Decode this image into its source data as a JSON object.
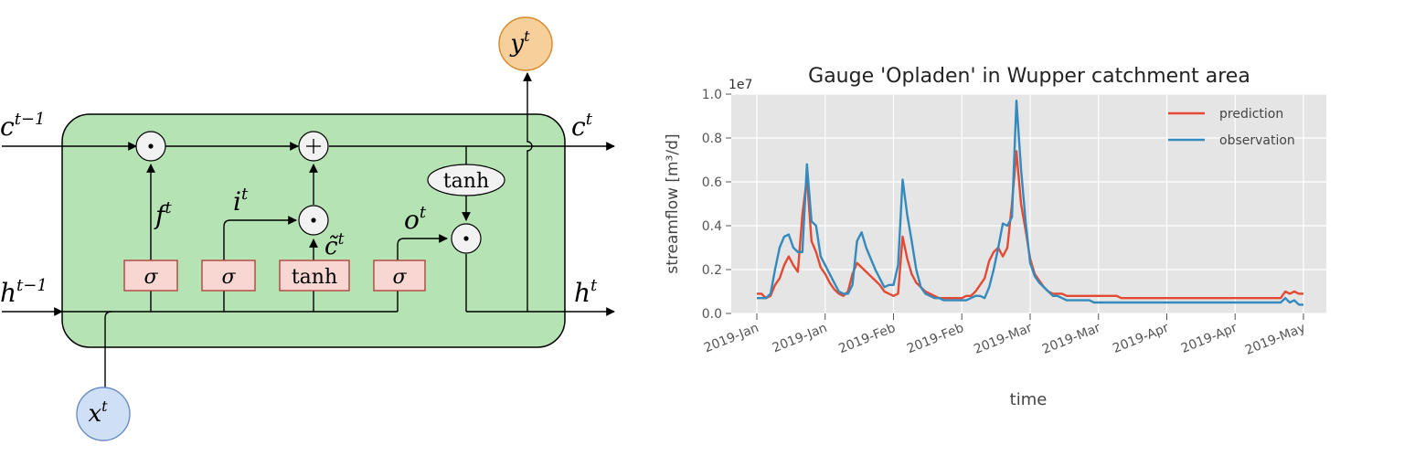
{
  "diagram": {
    "inputs": {
      "c_prev": {
        "base": "c",
        "sup": "t−1"
      },
      "h_prev": {
        "base": "h",
        "sup": "t−1"
      },
      "x": {
        "base": "x",
        "sup": "t"
      }
    },
    "outputs": {
      "c": {
        "base": "c",
        "sup": "t"
      },
      "h": {
        "base": "h",
        "sup": "t"
      },
      "y": {
        "base": "y",
        "sup": "t"
      }
    },
    "gate_labels": {
      "f": {
        "base": "f",
        "sup": "t"
      },
      "i": {
        "base": "i",
        "sup": "t"
      },
      "c_tilde": {
        "base": "c̃",
        "sup": "t"
      },
      "o": {
        "base": "o",
        "sup": "t"
      }
    },
    "boxes": [
      "σ",
      "σ",
      "tanh",
      "σ"
    ],
    "tanh_node": "tanh",
    "ops": {
      "mul": "⊙",
      "add": "+"
    },
    "colors": {
      "cell_fill": "#b5e3b4",
      "gate_fill": "#f8d7d2",
      "gate_stroke": "#b5413d",
      "y_fill": "#f6cf9a",
      "y_stroke": "#d48a2e",
      "x_fill": "#cfe0f6",
      "x_stroke": "#6b8dc4",
      "op_fill": "#f2f2f2"
    }
  },
  "chart_data": {
    "type": "line",
    "title": "Gauge 'Opladen' in Wupper catchment area",
    "xlabel": "time",
    "ylabel": "streamflow [m³/d]",
    "offset_label": "1e7",
    "ylim": [
      0,
      1.0
    ],
    "yticks": [
      "0.0",
      "0.2",
      "0.4",
      "0.6",
      "0.8",
      "1.0"
    ],
    "xticks": [
      "2019-Jan",
      "2019-Jan",
      "2019-Feb",
      "2019-Feb",
      "2019-Mar",
      "2019-Mar",
      "2019-Apr",
      "2019-Apr",
      "2019-May"
    ],
    "grid": true,
    "legend": "top-right",
    "x": [
      0,
      1,
      2,
      3,
      4,
      5,
      6,
      7,
      8,
      9,
      10,
      11,
      12,
      13,
      14,
      15,
      16,
      17,
      18,
      19,
      20,
      21,
      22,
      23,
      24,
      25,
      26,
      27,
      28,
      29,
      30,
      31,
      32,
      33,
      34,
      35,
      36,
      37,
      38,
      39,
      40,
      41,
      42,
      43,
      44,
      45,
      46,
      47,
      48,
      49,
      50,
      51,
      52,
      53,
      54,
      55,
      56,
      57,
      58,
      59,
      60,
      61,
      62,
      63,
      64,
      65,
      66,
      67,
      68,
      69,
      70,
      71,
      72,
      73,
      74,
      75,
      76,
      77,
      78,
      79,
      80,
      81,
      82,
      83,
      84,
      85,
      86,
      87,
      88,
      89,
      90,
      91,
      92,
      93,
      94,
      95,
      96,
      97,
      98,
      99,
      100,
      101,
      102,
      103,
      104,
      105,
      106,
      107,
      108,
      109,
      110,
      111,
      112,
      113,
      114,
      115,
      116,
      117,
      118,
      119,
      120
    ],
    "series": [
      {
        "name": "prediction",
        "color": "#e24a33",
        "values": [
          0.09,
          0.09,
          0.07,
          0.08,
          0.13,
          0.16,
          0.22,
          0.26,
          0.22,
          0.19,
          0.45,
          0.62,
          0.33,
          0.28,
          0.21,
          0.18,
          0.14,
          0.11,
          0.09,
          0.08,
          0.1,
          0.18,
          0.23,
          0.21,
          0.19,
          0.17,
          0.15,
          0.13,
          0.1,
          0.09,
          0.08,
          0.09,
          0.35,
          0.25,
          0.18,
          0.14,
          0.12,
          0.1,
          0.09,
          0.08,
          0.07,
          0.07,
          0.07,
          0.07,
          0.07,
          0.07,
          0.08,
          0.08,
          0.1,
          0.13,
          0.16,
          0.24,
          0.28,
          0.3,
          0.26,
          0.3,
          0.5,
          0.74,
          0.5,
          0.38,
          0.25,
          0.18,
          0.15,
          0.12,
          0.1,
          0.09,
          0.09,
          0.09,
          0.08,
          0.08,
          0.08,
          0.08,
          0.08,
          0.08,
          0.08,
          0.08,
          0.08,
          0.08,
          0.08,
          0.08,
          0.07,
          0.07,
          0.07,
          0.07,
          0.07,
          0.07,
          0.07,
          0.07,
          0.07,
          0.07,
          0.07,
          0.07,
          0.07,
          0.07,
          0.07,
          0.07,
          0.07,
          0.07,
          0.07,
          0.07,
          0.07,
          0.07,
          0.07,
          0.07,
          0.07,
          0.07,
          0.07,
          0.07,
          0.07,
          0.07,
          0.07,
          0.07,
          0.07,
          0.07,
          0.07,
          0.07,
          0.1,
          0.09,
          0.1,
          0.09,
          0.09
        ]
      },
      {
        "name": "observation",
        "color": "#348abd",
        "values": [
          0.07,
          0.07,
          0.07,
          0.09,
          0.2,
          0.3,
          0.35,
          0.36,
          0.3,
          0.28,
          0.28,
          0.68,
          0.42,
          0.4,
          0.26,
          0.22,
          0.18,
          0.14,
          0.1,
          0.09,
          0.09,
          0.13,
          0.33,
          0.37,
          0.3,
          0.25,
          0.2,
          0.16,
          0.12,
          0.13,
          0.13,
          0.22,
          0.61,
          0.45,
          0.33,
          0.2,
          0.12,
          0.09,
          0.08,
          0.07,
          0.07,
          0.06,
          0.06,
          0.06,
          0.06,
          0.06,
          0.06,
          0.07,
          0.08,
          0.08,
          0.07,
          0.12,
          0.2,
          0.3,
          0.41,
          0.4,
          0.44,
          0.97,
          0.66,
          0.42,
          0.23,
          0.17,
          0.14,
          0.12,
          0.1,
          0.08,
          0.08,
          0.07,
          0.06,
          0.06,
          0.06,
          0.06,
          0.06,
          0.06,
          0.05,
          0.05,
          0.05,
          0.05,
          0.05,
          0.05,
          0.05,
          0.05,
          0.05,
          0.05,
          0.05,
          0.05,
          0.05,
          0.05,
          0.05,
          0.05,
          0.05,
          0.05,
          0.05,
          0.05,
          0.05,
          0.05,
          0.05,
          0.05,
          0.05,
          0.05,
          0.05,
          0.05,
          0.05,
          0.05,
          0.05,
          0.05,
          0.05,
          0.05,
          0.05,
          0.05,
          0.05,
          0.05,
          0.05,
          0.05,
          0.05,
          0.05,
          0.07,
          0.05,
          0.06,
          0.04,
          0.04
        ]
      }
    ]
  }
}
